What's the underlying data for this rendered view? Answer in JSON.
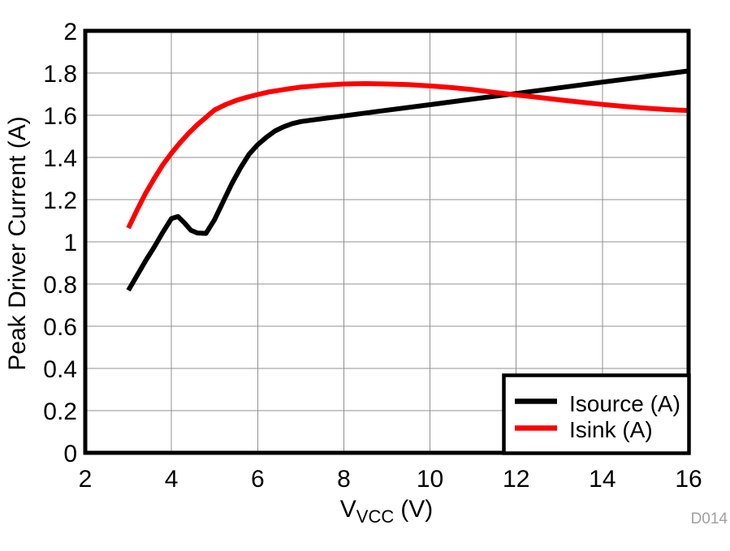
{
  "figure": {
    "watermark": "D014",
    "background_color": "#ffffff"
  },
  "axis": {
    "x_title_prefix": "V",
    "x_title_sub": "VCC",
    "x_title_suffix": "(V)"
  },
  "legend": {
    "position": "lower right",
    "items": [
      {
        "label": "Isource (A)",
        "color": "#000000"
      },
      {
        "label": "Isink (A)",
        "color": "#ff0000"
      }
    ]
  },
  "chart_data": {
    "type": "line",
    "title": "",
    "xlabel": "V_VCC (V)",
    "ylabel": "Peak Driver Current (A)",
    "xlim": [
      2,
      16
    ],
    "ylim": [
      0,
      2
    ],
    "grid": true,
    "grid_color": "#909090",
    "frame_color": "#000000",
    "legend_position": "lower right",
    "x_ticks": [
      2,
      4,
      6,
      8,
      10,
      12,
      14,
      16
    ],
    "x_tick_labels": [
      "2",
      "4",
      "6",
      "8",
      "10",
      "12",
      "14",
      "16"
    ],
    "y_ticks": [
      0,
      0.2,
      0.4,
      0.6,
      0.8,
      1.0,
      1.2,
      1.4,
      1.6,
      1.8,
      2.0
    ],
    "y_tick_labels": [
      "0",
      "0.2",
      "0.4",
      "0.6",
      "0.8",
      "1",
      "1.2",
      "1.4",
      "1.6",
      "1.8",
      "2"
    ],
    "series": [
      {
        "name": "Isource (A)",
        "color": "#000000",
        "points": [
          [
            3.0,
            0.77
          ],
          [
            3.2,
            0.84
          ],
          [
            3.4,
            0.91
          ],
          [
            3.6,
            0.975
          ],
          [
            3.8,
            1.045
          ],
          [
            4.0,
            1.11
          ],
          [
            4.15,
            1.12
          ],
          [
            4.3,
            1.09
          ],
          [
            4.45,
            1.055
          ],
          [
            4.6,
            1.042
          ],
          [
            4.8,
            1.04
          ],
          [
            5.0,
            1.105
          ],
          [
            5.2,
            1.19
          ],
          [
            5.4,
            1.275
          ],
          [
            5.6,
            1.35
          ],
          [
            5.8,
            1.415
          ],
          [
            6.0,
            1.46
          ],
          [
            6.2,
            1.495
          ],
          [
            6.4,
            1.525
          ],
          [
            6.6,
            1.545
          ],
          [
            6.8,
            1.56
          ],
          [
            7.0,
            1.57
          ],
          [
            8.0,
            1.597
          ],
          [
            9.0,
            1.624
          ],
          [
            10.0,
            1.65
          ],
          [
            11.0,
            1.677
          ],
          [
            12.0,
            1.703
          ],
          [
            13.0,
            1.73
          ],
          [
            14.0,
            1.757
          ],
          [
            15.0,
            1.783
          ],
          [
            16.0,
            1.81
          ]
        ]
      },
      {
        "name": "Isink (A)",
        "color": "#ff0000",
        "points": [
          [
            3.0,
            1.065
          ],
          [
            3.2,
            1.15
          ],
          [
            3.4,
            1.23
          ],
          [
            3.6,
            1.3
          ],
          [
            3.8,
            1.365
          ],
          [
            4.0,
            1.42
          ],
          [
            4.2,
            1.47
          ],
          [
            4.4,
            1.515
          ],
          [
            4.6,
            1.555
          ],
          [
            4.8,
            1.59
          ],
          [
            5.0,
            1.625
          ],
          [
            5.25,
            1.65
          ],
          [
            5.5,
            1.67
          ],
          [
            5.75,
            1.685
          ],
          [
            6.0,
            1.698
          ],
          [
            6.25,
            1.71
          ],
          [
            6.5,
            1.718
          ],
          [
            6.75,
            1.726
          ],
          [
            7.0,
            1.733
          ],
          [
            7.5,
            1.742
          ],
          [
            8.0,
            1.748
          ],
          [
            8.5,
            1.75
          ],
          [
            9.0,
            1.748
          ],
          [
            9.5,
            1.745
          ],
          [
            10.0,
            1.739
          ],
          [
            10.5,
            1.731
          ],
          [
            11.0,
            1.721
          ],
          [
            11.5,
            1.708
          ],
          [
            12.0,
            1.696
          ],
          [
            12.5,
            1.685
          ],
          [
            13.0,
            1.673
          ],
          [
            13.5,
            1.662
          ],
          [
            14.0,
            1.651
          ],
          [
            14.5,
            1.642
          ],
          [
            15.0,
            1.634
          ],
          [
            15.5,
            1.627
          ],
          [
            16.0,
            1.622
          ]
        ]
      }
    ]
  }
}
